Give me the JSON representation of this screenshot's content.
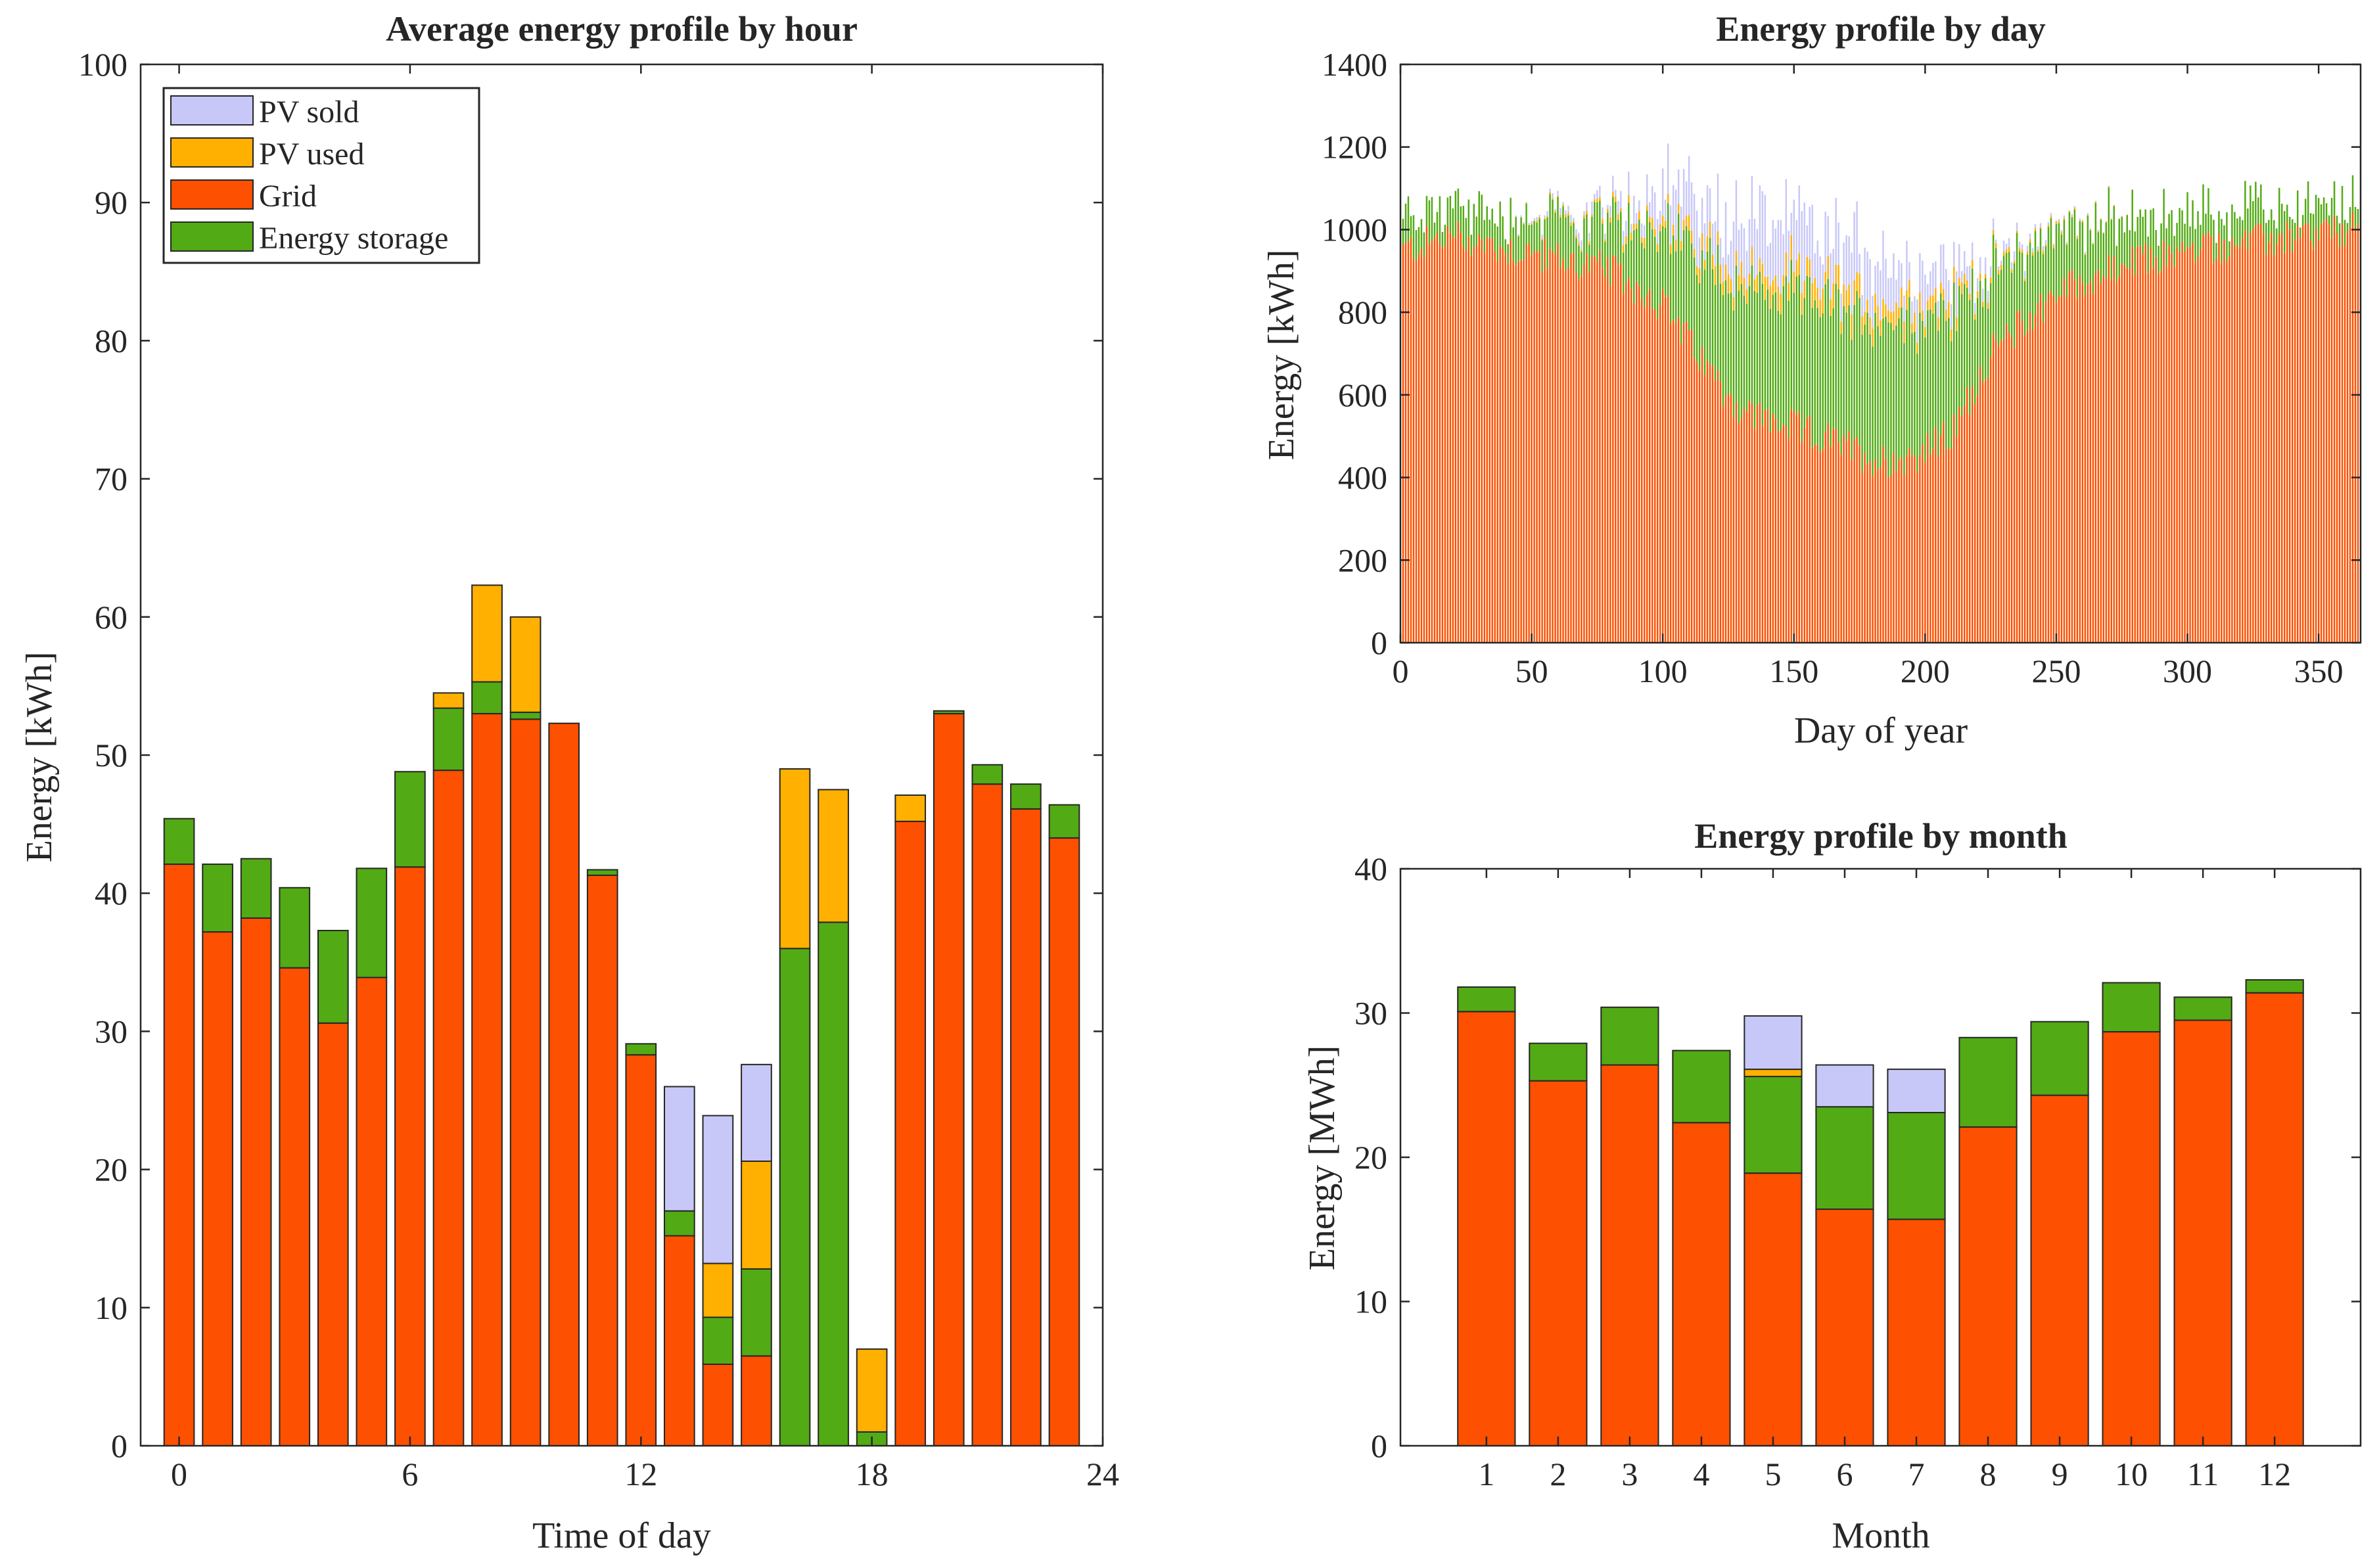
{
  "colors": {
    "pv_sold": "#c8c8f8",
    "pv_used": "#ffb000",
    "grid": "#fd5000",
    "energy_storage": "#52aa14",
    "axis": "#262626"
  },
  "chart_data": [
    {
      "id": "hourly",
      "type": "bar",
      "stacked": true,
      "title": "Average energy profile by hour",
      "xlabel": "Time of day",
      "ylabel": "Energy [kWh]",
      "xlim": [
        -1,
        24
      ],
      "ylim": [
        0,
        100
      ],
      "xticks": [
        0,
        6,
        12,
        18,
        24
      ],
      "yticks": [
        0,
        10,
        20,
        30,
        40,
        50,
        60,
        70,
        80,
        90,
        100
      ],
      "legend": {
        "position": "top-left",
        "entries": [
          "PV sold",
          "PV used",
          "Grid",
          "Energy storage"
        ]
      },
      "x": [
        0,
        1,
        2,
        3,
        4,
        5,
        6,
        7,
        8,
        9,
        10,
        11,
        12,
        13,
        14,
        15,
        16,
        17,
        18,
        19,
        20,
        21,
        22,
        23
      ],
      "stack_order": [
        "grid",
        "energy_storage",
        "pv_used",
        "pv_sold"
      ],
      "series": [
        {
          "key": "grid",
          "name": "Grid",
          "values": [
            42.1,
            37.2,
            38.2,
            34.6,
            30.6,
            33.9,
            41.9,
            48.9,
            53.0,
            52.6,
            52.3,
            41.3,
            28.3,
            15.2,
            5.9,
            6.5,
            0,
            0,
            0,
            45.2,
            53.0,
            47.9,
            46.1,
            44.0
          ]
        },
        {
          "key": "energy_storage",
          "name": "Energy storage",
          "values": [
            3.3,
            4.9,
            4.3,
            5.8,
            6.7,
            7.9,
            6.9,
            4.5,
            2.3,
            0.5,
            0,
            0.4,
            0.8,
            1.8,
            3.4,
            6.3,
            36.0,
            37.9,
            1.0,
            0,
            0.2,
            1.4,
            1.8,
            2.4
          ]
        },
        {
          "key": "pv_used",
          "name": "PV used",
          "values": [
            0,
            0,
            0,
            0,
            0,
            0,
            0,
            1.1,
            7.0,
            6.9,
            0,
            0,
            0,
            0,
            3.9,
            7.8,
            13.0,
            9.6,
            6.0,
            1.9,
            0,
            0,
            0,
            0
          ]
        },
        {
          "key": "pv_sold",
          "name": "PV sold",
          "values": [
            0,
            0,
            0,
            0,
            0,
            0,
            0,
            0,
            0,
            0,
            0,
            0,
            0,
            9.0,
            10.7,
            7.0,
            0,
            0,
            0,
            0,
            0,
            0,
            0,
            0
          ]
        }
      ]
    },
    {
      "id": "daily",
      "type": "bar",
      "stacked": true,
      "title": "Energy profile by day",
      "xlabel": "Day of year",
      "ylabel": "Energy [kWh]",
      "xlim": [
        0,
        366
      ],
      "ylim": [
        0,
        1400
      ],
      "xticks": [
        0,
        50,
        100,
        150,
        200,
        250,
        300,
        350
      ],
      "yticks": [
        0,
        200,
        400,
        600,
        800,
        1000,
        1200,
        1400
      ],
      "stack_order": [
        "grid",
        "energy_storage",
        "pv_used",
        "pv_sold"
      ],
      "days": 365,
      "profile_points": {
        "day": [
          1,
          20,
          40,
          60,
          80,
          100,
          115,
          130,
          150,
          170,
          182,
          195,
          210,
          225,
          250,
          280,
          310,
          340,
          365
        ],
        "grid": [
          950,
          985,
          955,
          930,
          900,
          820,
          680,
          560,
          520,
          475,
          440,
          450,
          500,
          700,
          850,
          920,
          960,
          980,
          1000
        ],
        "energy_storage": [
          80,
          70,
          80,
          90,
          110,
          190,
          260,
          300,
          320,
          330,
          340,
          330,
          300,
          200,
          150,
          110,
          80,
          70,
          60
        ],
        "pv_used": [
          0,
          0,
          0,
          5,
          10,
          25,
          30,
          40,
          45,
          45,
          45,
          40,
          30,
          10,
          5,
          0,
          0,
          0,
          0
        ],
        "pv_sold": [
          0,
          0,
          0,
          10,
          25,
          75,
          100,
          120,
          130,
          120,
          110,
          100,
          80,
          20,
          5,
          0,
          0,
          0,
          0
        ]
      }
    },
    {
      "id": "monthly",
      "type": "bar",
      "stacked": true,
      "title": "Energy profile by month",
      "xlabel": "Month",
      "ylabel": "Energy [MWh]",
      "xlim": [
        -0.2,
        13.2
      ],
      "ylim": [
        0,
        40
      ],
      "xticks": [
        1,
        2,
        3,
        4,
        5,
        6,
        7,
        8,
        9,
        10,
        11,
        12
      ],
      "yticks": [
        0,
        10,
        20,
        30,
        40
      ],
      "x": [
        1,
        2,
        3,
        4,
        5,
        6,
        7,
        8,
        9,
        10,
        11,
        12
      ],
      "stack_order": [
        "grid",
        "energy_storage",
        "pv_used",
        "pv_sold"
      ],
      "series": [
        {
          "key": "grid",
          "name": "Grid",
          "values": [
            30.1,
            25.3,
            26.4,
            22.4,
            18.9,
            16.4,
            15.7,
            22.1,
            24.3,
            28.7,
            29.5,
            31.4
          ]
        },
        {
          "key": "energy_storage",
          "name": "Energy storage",
          "values": [
            1.7,
            2.6,
            4.0,
            5.0,
            6.7,
            7.1,
            7.4,
            6.2,
            5.1,
            3.4,
            1.6,
            0.9
          ]
        },
        {
          "key": "pv_used",
          "name": "PV used",
          "values": [
            0,
            0,
            0,
            0,
            0.5,
            0,
            0,
            0,
            0,
            0,
            0,
            0
          ]
        },
        {
          "key": "pv_sold",
          "name": "PV sold",
          "values": [
            0,
            0,
            0,
            0,
            3.7,
            2.9,
            3.0,
            0,
            0,
            0,
            0,
            0
          ]
        }
      ]
    }
  ]
}
